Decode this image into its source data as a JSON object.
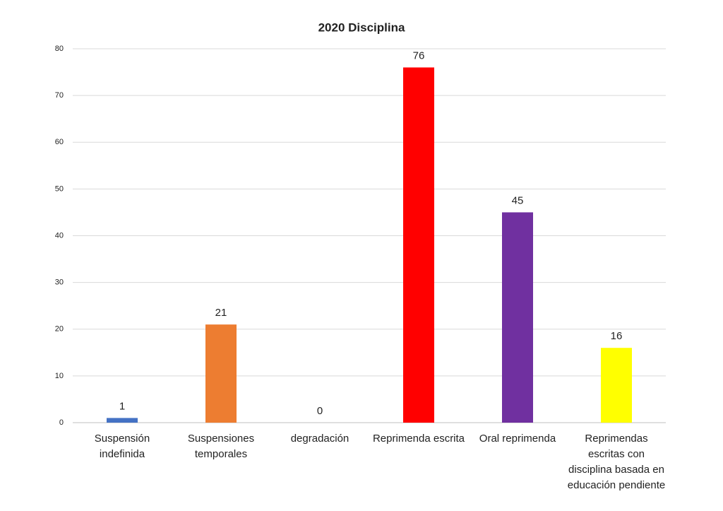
{
  "chart_data": {
    "type": "bar",
    "title": "2020 Disciplina",
    "categories": [
      "Suspensión indefinida",
      "Suspensiones temporales",
      "degradación",
      "Reprimenda escrita",
      "Oral reprimenda",
      "Reprimendas escritas con disciplina basada en educación pendiente"
    ],
    "values": [
      1,
      21,
      0,
      76,
      45,
      16
    ],
    "colors": [
      "#4472c4",
      "#ed7d31",
      "#a5a5a5",
      "#ff0000",
      "#7030a0",
      "#ffff00"
    ],
    "ylim": [
      0,
      80
    ],
    "yticks": [
      0,
      10,
      20,
      30,
      40,
      50,
      60,
      70,
      80
    ],
    "grid": true
  }
}
